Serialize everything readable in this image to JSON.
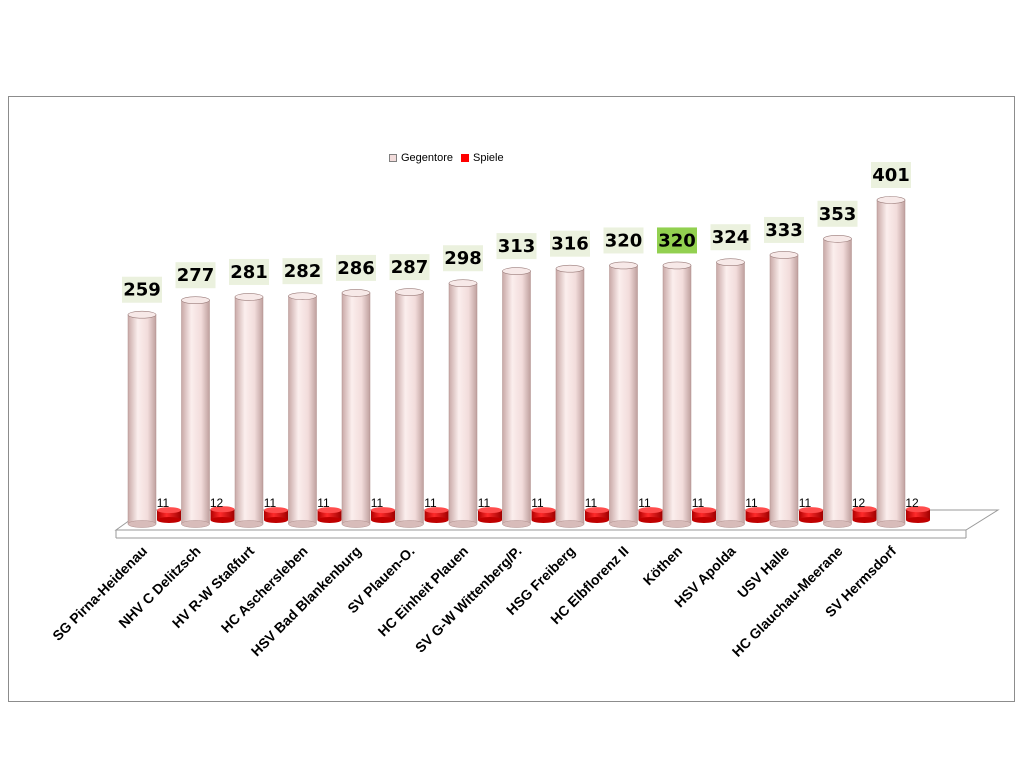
{
  "chart_data": {
    "type": "bar",
    "categories": [
      "SG Pirna-Heidenau",
      "NHV C Delitzsch",
      "HV R-W Staßfurt",
      "HC Aschersleben",
      "HSV Bad Blankenburg",
      "SV Plauen-O.",
      "HC Einheit Plauen",
      "SV G-W Wittenberg/P.",
      "HSG Freiberg",
      "HC Elbflorenz II",
      "Köthen",
      "HSV Apolda",
      "USV Halle",
      "HC Glauchau-Meerane",
      "SV Hermsdorf"
    ],
    "series": [
      {
        "name": "Gegentore",
        "values": [
          259,
          277,
          281,
          282,
          286,
          287,
          298,
          313,
          316,
          320,
          320,
          324,
          333,
          353,
          401
        ],
        "color": "#f2dcdb"
      },
      {
        "name": "Spiele",
        "values": [
          11,
          12,
          11,
          11,
          11,
          11,
          11,
          11,
          11,
          11,
          11,
          11,
          11,
          12,
          12
        ],
        "color": "#ff0000"
      }
    ],
    "highlight": {
      "category": "Köthen",
      "label_color": "#92d050"
    },
    "label_background": "#ebf1de",
    "legend_position": "top",
    "grid": false
  }
}
